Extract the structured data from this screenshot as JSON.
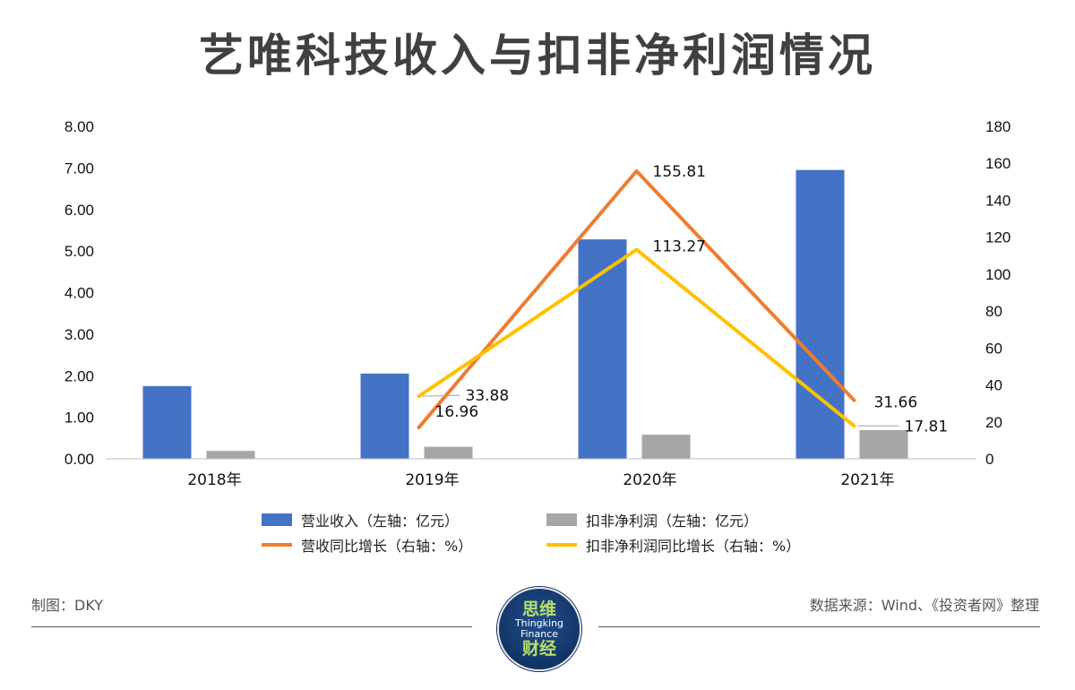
{
  "title": "艺唯科技收入与扣非净利润情况",
  "footer": {
    "author": "制图：DKY",
    "source": "数据来源：Wind、《投资者网》整理"
  },
  "logo": {
    "top": "思维",
    "line1": "Thingking",
    "line2": "Finance",
    "bottom": "财经"
  },
  "colors": {
    "revenue": "#4472C4",
    "profit": "#A6A6A6",
    "revenue_growth": "#ED7D31",
    "profit_growth": "#FFC000"
  },
  "chart_data": {
    "type": "bar",
    "title": "艺唯科技收入与扣非净利润情况",
    "categories": [
      "2018年",
      "2019年",
      "2020年",
      "2021年"
    ],
    "left_axis": {
      "min": 0,
      "max": 8,
      "step": 1,
      "ticks": [
        "0.00",
        "1.00",
        "2.00",
        "3.00",
        "4.00",
        "5.00",
        "6.00",
        "7.00",
        "8.00"
      ]
    },
    "right_axis": {
      "min": 0,
      "max": 180,
      "step": 20,
      "ticks": [
        "0",
        "20",
        "40",
        "60",
        "80",
        "100",
        "120",
        "140",
        "160",
        "180"
      ]
    },
    "series": [
      {
        "name": "营业收入（左轴：亿元）",
        "type": "bar",
        "axis": "left",
        "color": "#4472C4",
        "values": [
          1.75,
          2.05,
          5.28,
          6.95
        ]
      },
      {
        "name": "扣非净利润（左轴：亿元）",
        "type": "bar",
        "axis": "left",
        "color": "#A6A6A6",
        "values": [
          0.19,
          0.29,
          0.58,
          0.69
        ]
      },
      {
        "name": "营收同比增长（右轴：%）",
        "type": "line",
        "axis": "right",
        "color": "#ED7D31",
        "values": [
          null,
          16.96,
          155.81,
          31.66
        ],
        "labels": [
          null,
          "16.96",
          "155.81",
          "31.66"
        ]
      },
      {
        "name": "扣非净利润同比增长（右轴：%）",
        "type": "line",
        "axis": "right",
        "color": "#FFC000",
        "values": [
          null,
          33.88,
          113.27,
          17.81
        ],
        "labels": [
          null,
          "33.88",
          "113.27",
          "17.81"
        ]
      }
    ]
  }
}
